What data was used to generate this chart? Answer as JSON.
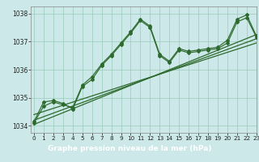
{
  "title": "Graphe pression niveau de la mer (hPa)",
  "x_values": [
    0,
    1,
    2,
    3,
    4,
    5,
    6,
    7,
    8,
    9,
    10,
    11,
    12,
    13,
    14,
    15,
    16,
    17,
    18,
    19,
    20,
    21,
    22,
    23
  ],
  "line1_y": [
    1034.1,
    1034.7,
    1034.85,
    1034.75,
    1034.65,
    1035.45,
    1035.75,
    1036.2,
    1036.55,
    1036.95,
    1037.35,
    1037.8,
    1037.55,
    1036.55,
    1036.3,
    1036.75,
    1036.65,
    1036.7,
    1036.75,
    1036.8,
    1037.05,
    1037.8,
    1037.95,
    1037.2
  ],
  "line2_y": [
    1034.15,
    1034.85,
    1034.9,
    1034.8,
    1034.6,
    1035.4,
    1035.65,
    1036.15,
    1036.5,
    1036.9,
    1037.3,
    1037.75,
    1037.5,
    1036.5,
    1036.25,
    1036.7,
    1036.6,
    1036.65,
    1036.7,
    1036.75,
    1036.95,
    1037.7,
    1037.85,
    1037.15
  ],
  "trend1_x": [
    0,
    23
  ],
  "trend1_y": [
    1034.05,
    1037.25
  ],
  "trend2_x": [
    0,
    23
  ],
  "trend2_y": [
    1034.2,
    1037.1
  ],
  "trend3_x": [
    0,
    23
  ],
  "trend3_y": [
    1034.4,
    1036.95
  ],
  "ylim_min": 1033.75,
  "ylim_max": 1038.25,
  "xlim_min": -0.3,
  "xlim_max": 23,
  "yticks": [
    1034,
    1035,
    1036,
    1037,
    1038
  ],
  "xticks": [
    0,
    1,
    2,
    3,
    4,
    5,
    6,
    7,
    8,
    9,
    10,
    11,
    12,
    13,
    14,
    15,
    16,
    17,
    18,
    19,
    20,
    21,
    22,
    23
  ],
  "line_color": "#2d6a2d",
  "bg_color": "#cce8e8",
  "grid_color": "#99ccbb",
  "title_bg_color": "#336633",
  "title_text_color": "#ffffff",
  "title_fontsize": 6.5,
  "tick_fontsize": 5.2,
  "ytick_fontsize": 5.5
}
